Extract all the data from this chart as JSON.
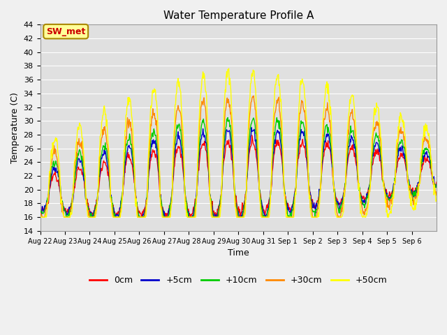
{
  "title": "Water Temperature Profile A",
  "xlabel": "Time",
  "ylabel": "Temperature (C)",
  "ylim": [
    14,
    44
  ],
  "yticks": [
    14,
    16,
    18,
    20,
    22,
    24,
    26,
    28,
    30,
    32,
    34,
    36,
    38,
    40,
    42,
    44
  ],
  "x_labels": [
    "Aug 22",
    "Aug 23",
    "Aug 24",
    "Aug 25",
    "Aug 26",
    "Aug 27",
    "Aug 28",
    "Aug 29",
    "Aug 30",
    "Aug 31",
    "Sep 1",
    "Sep 2",
    "Sep 3",
    "Sep 4",
    "Sep 5",
    "Sep 6"
  ],
  "plot_bg": "#e0e0e0",
  "fig_bg": "#f0f0f0",
  "grid_color": "#ffffff",
  "line_colors": [
    "#ff0000",
    "#0000cc",
    "#00cc00",
    "#ff8800",
    "#ffff00"
  ],
  "line_labels": [
    "0cm",
    "+5cm",
    "+10cm",
    "+30cm",
    "+50cm"
  ],
  "annotation_text": "SW_met",
  "annotation_color": "#cc0000",
  "annotation_bg": "#ffff99",
  "annotation_border": "#aa8800"
}
